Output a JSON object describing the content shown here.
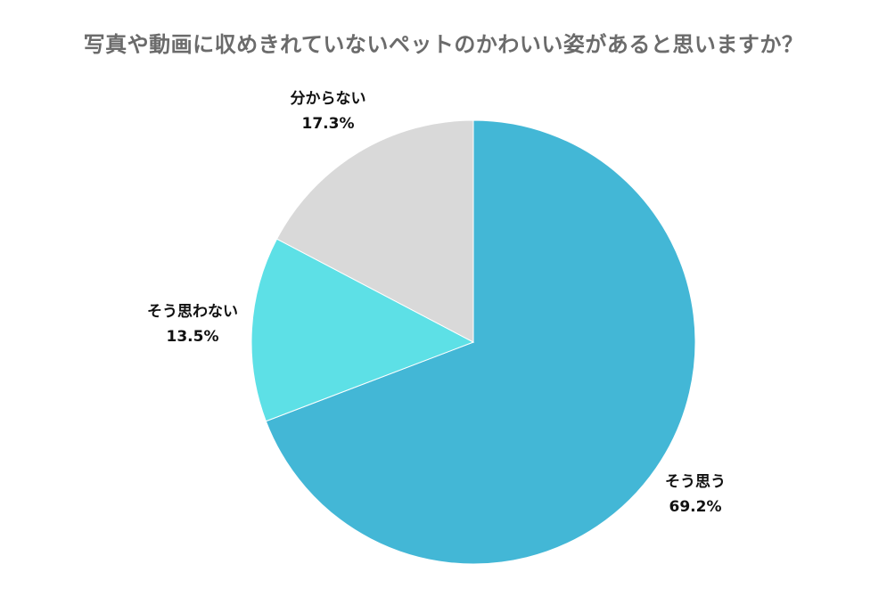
{
  "chart_data": {
    "type": "pie",
    "title": "写真や動画に収めきれていないペットのかわいい姿があると思いますか？",
    "slices": [
      {
        "label": "そう思う",
        "value": 69.2,
        "value_label": "69.2%",
        "color": "#43b7d6"
      },
      {
        "label": "そう思わない",
        "value": 13.5,
        "value_label": "13.5%",
        "color": "#5de0e6"
      },
      {
        "label": "分からない",
        "value": 17.3,
        "value_label": "17.3%",
        "color": "#d9d9d9"
      }
    ],
    "start_angle": "12 o'clock",
    "direction": "clockwise",
    "legend": "none (labels beside slices)"
  }
}
